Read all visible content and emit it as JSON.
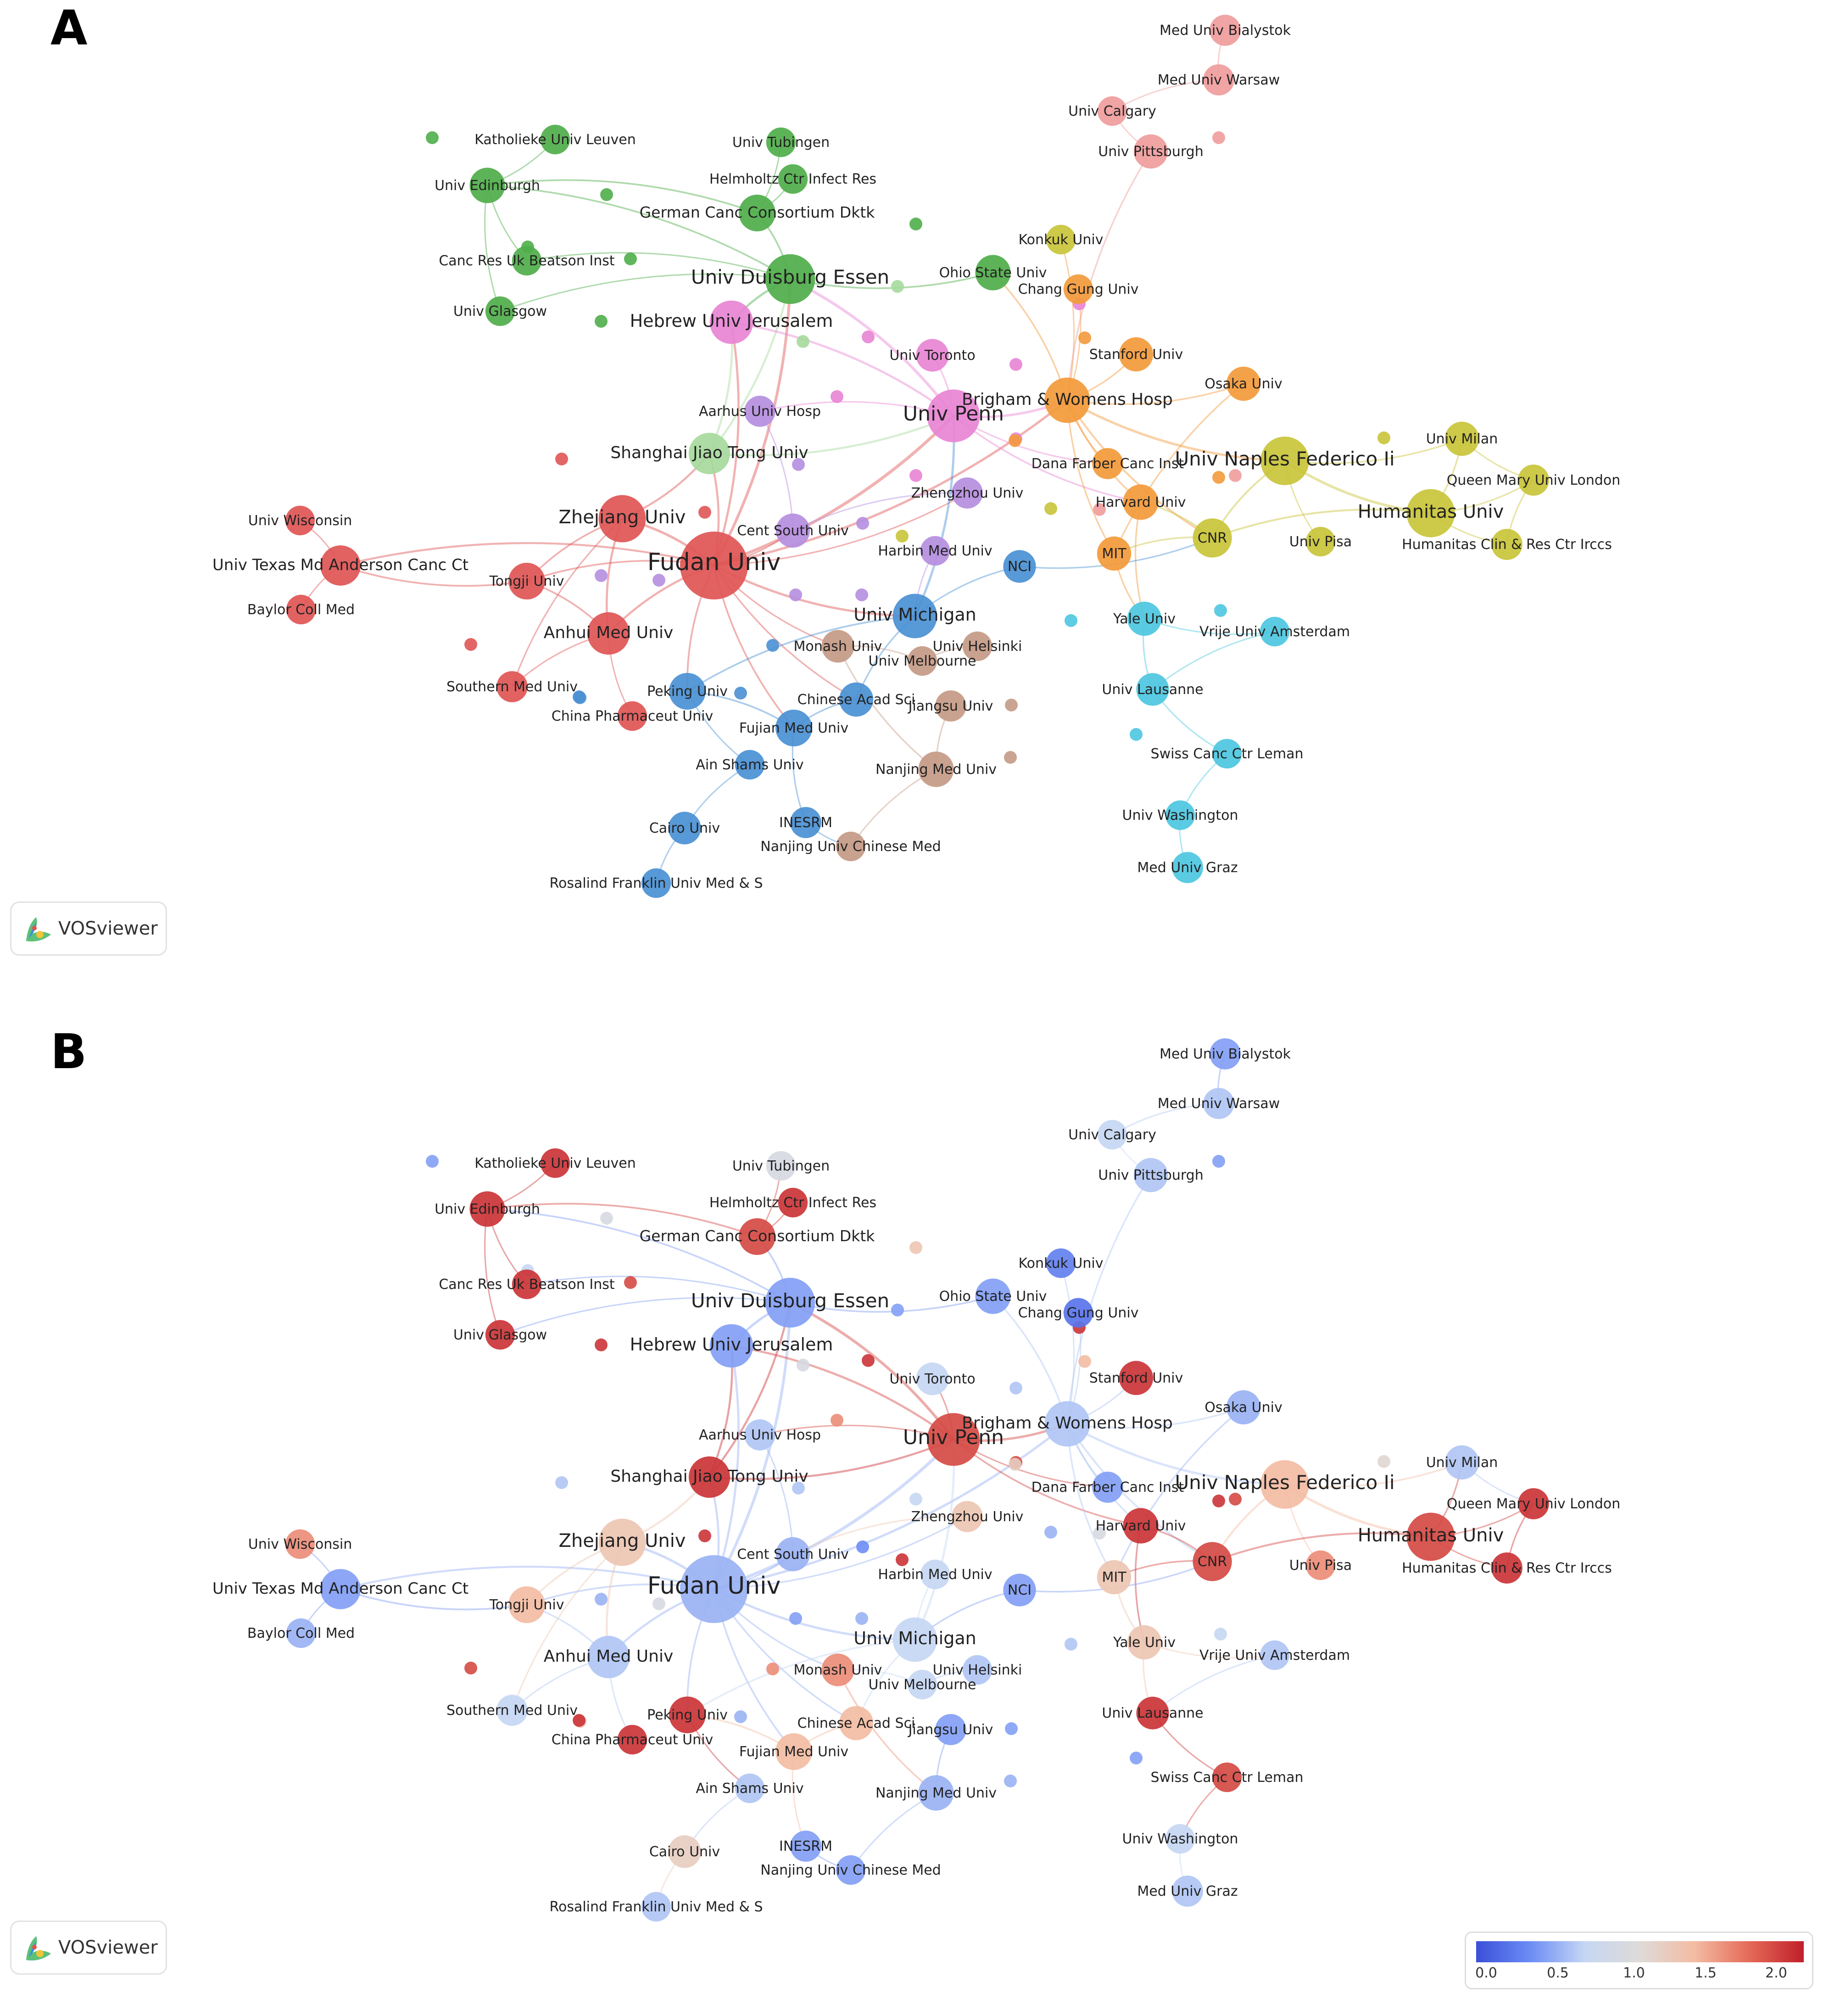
{
  "panels": [
    {
      "letter": "A",
      "logo_text": "VOSviewer"
    },
    {
      "letter": "B",
      "logo_text": "VOSviewer",
      "scale": {
        "ticks": [
          "0.0",
          "0.5",
          "1.0",
          "1.5",
          "2.0"
        ]
      }
    }
  ],
  "nodes": [
    {
      "label": "Fudan Univ",
      "cluster": "red",
      "weight": 100,
      "score": 0.7
    },
    {
      "label": "Univ Penn",
      "cluster": "pink",
      "weight": 55,
      "score": 1.9
    },
    {
      "label": "Univ Duisburg Essen",
      "cluster": "green",
      "weight": 48,
      "score": 0.6
    },
    {
      "label": "Univ Naples Federico Ii",
      "cluster": "yellow",
      "weight": 45,
      "score": 1.4
    },
    {
      "label": "Humanitas Univ",
      "cluster": "yellow",
      "weight": 44,
      "score": 1.9
    },
    {
      "label": "Zhejiang Univ",
      "cluster": "red",
      "weight": 42,
      "score": 1.3
    },
    {
      "label": "Brigham & Womens Hosp",
      "cluster": "orange",
      "weight": 38,
      "score": 0.8
    },
    {
      "label": "Univ Michigan",
      "cluster": "blue",
      "weight": 36,
      "score": 0.9
    },
    {
      "label": "Hebrew Univ Jerusalem",
      "cluster": "pink",
      "weight": 34,
      "score": 0.6
    },
    {
      "label": "Anhui Med Univ",
      "cluster": "red",
      "weight": 32,
      "score": 0.8
    },
    {
      "label": "Shanghai Jiao Tong Univ",
      "cluster": "lightgreen",
      "weight": 30,
      "score": 2.0
    },
    {
      "label": "German Canc Consortium Dktk",
      "cluster": "green",
      "weight": 22,
      "score": 1.9
    },
    {
      "label": "Univ Texas Md Anderson Canc Ct",
      "cluster": "red",
      "weight": 28,
      "score": 0.6
    },
    {
      "label": "CNR",
      "cluster": "yellow",
      "weight": 26,
      "score": 1.9
    },
    {
      "label": "Tongji Univ",
      "cluster": "red",
      "weight": 22,
      "score": 1.4
    },
    {
      "label": "Univ Edinburgh",
      "cluster": "green",
      "weight": 20,
      "score": 2.0
    },
    {
      "label": "Ohio State Univ",
      "cluster": "green",
      "weight": 20,
      "score": 0.6
    },
    {
      "label": "Univ Toronto",
      "cluster": "pink",
      "weight": 16,
      "score": 0.9
    },
    {
      "label": "Stanford Univ",
      "cluster": "orange",
      "weight": 18,
      "score": 2.0
    },
    {
      "label": "Osaka Univ",
      "cluster": "orange",
      "weight": 18,
      "score": 0.7
    },
    {
      "label": "Harvard Univ",
      "cluster": "orange",
      "weight": 20,
      "score": 2.0
    },
    {
      "label": "MIT",
      "cluster": "orange",
      "weight": 18,
      "score": 1.3
    },
    {
      "label": "Univ Milan",
      "cluster": "yellow",
      "weight": 18,
      "score": 0.8
    },
    {
      "label": "Queen Mary Univ London",
      "cluster": "yellow",
      "weight": 14,
      "score": 2.0
    },
    {
      "label": "Humanitas Clin & Res Ctr Irccs",
      "cluster": "yellow",
      "weight": 14,
      "score": 2.0
    },
    {
      "label": "Univ Pisa",
      "cluster": "yellow",
      "weight": 12,
      "score": 1.6
    },
    {
      "label": "Dana Farber Canc Inst",
      "cluster": "orange",
      "weight": 14,
      "score": 0.6
    },
    {
      "label": "Zhengzhou Univ",
      "cluster": "purple",
      "weight": 14,
      "score": 1.3
    },
    {
      "label": "Cent South Univ",
      "cluster": "purple",
      "weight": 18,
      "score": 0.7
    },
    {
      "label": "Aarhus Univ Hosp",
      "cluster": "purple",
      "weight": 14,
      "score": 0.8
    },
    {
      "label": "Harbin Med Univ",
      "cluster": "purple",
      "weight": 12,
      "score": 0.9
    },
    {
      "label": "NCI",
      "cluster": "blue",
      "weight": 16,
      "score": 0.6
    },
    {
      "label": "Yale Univ",
      "cluster": "cyan",
      "weight": 18,
      "score": 1.3
    },
    {
      "label": "Vrije Univ Amsterdam",
      "cluster": "cyan",
      "weight": 12,
      "score": 0.8
    },
    {
      "label": "Univ Lausanne",
      "cluster": "cyan",
      "weight": 16,
      "score": 2.0
    },
    {
      "label": "Swiss Canc Ctr Leman",
      "cluster": "cyan",
      "weight": 12,
      "score": 1.9
    },
    {
      "label": "Univ Washington",
      "cluster": "cyan",
      "weight": 12,
      "score": 0.9
    },
    {
      "label": "Med Univ Graz",
      "cluster": "cyan",
      "weight": 14,
      "score": 0.8
    },
    {
      "label": "Univ Helsinki",
      "cluster": "brown",
      "weight": 12,
      "score": 0.8
    },
    {
      "label": "Univ Melbourne",
      "cluster": "brown",
      "weight": 12,
      "score": 0.9
    },
    {
      "label": "Monash Univ",
      "cluster": "brown",
      "weight": 16,
      "score": 1.6
    },
    {
      "label": "Chinese Acad Sci",
      "cluster": "blue",
      "weight": 18,
      "score": 1.4
    },
    {
      "label": "Jiangsu Univ",
      "cluster": "brown",
      "weight": 14,
      "score": 0.6
    },
    {
      "label": "Nanjing Med Univ",
      "cluster": "brown",
      "weight": 20,
      "score": 0.7
    },
    {
      "label": "Fujian Med Univ",
      "cluster": "blue",
      "weight": 22,
      "score": 1.4
    },
    {
      "label": "Peking Univ",
      "cluster": "blue",
      "weight": 22,
      "score": 2.0
    },
    {
      "label": "China Pharmaceut Univ",
      "cluster": "red",
      "weight": 12,
      "score": 2.0
    },
    {
      "label": "Southern Med Univ",
      "cluster": "red",
      "weight": 14,
      "score": 0.9
    },
    {
      "label": "Ain Shams Univ",
      "cluster": "blue",
      "weight": 12,
      "score": 0.8
    },
    {
      "label": "Cairo Univ",
      "cluster": "blue",
      "weight": 16,
      "score": 1.2
    },
    {
      "label": "INESRM",
      "cluster": "blue",
      "weight": 14,
      "score": 0.6
    },
    {
      "label": "Nanjing Univ Chinese Med",
      "cluster": "brown",
      "weight": 12,
      "score": 0.6
    },
    {
      "label": "Rosalind Franklin Univ Med & S",
      "cluster": "blue",
      "weight": 12,
      "score": 0.8
    },
    {
      "label": "Univ Wisconsin",
      "cluster": "red",
      "weight": 12,
      "score": 1.6
    },
    {
      "label": "Baylor Coll Med",
      "cluster": "red",
      "weight": 12,
      "score": 0.7
    },
    {
      "label": "Katholieke Univ Leuven",
      "cluster": "green",
      "weight": 12,
      "score": 2.0
    },
    {
      "label": "Canc Res Uk Beatson Inst",
      "cluster": "green",
      "weight": 12,
      "score": 2.0
    },
    {
      "label": "Univ Glasgow",
      "cluster": "green",
      "weight": 12,
      "score": 2.0
    },
    {
      "label": "Univ Tubingen",
      "cluster": "green",
      "weight": 12,
      "score": 1.0
    },
    {
      "label": "Helmholtz Ctr Infect Res",
      "cluster": "green",
      "weight": 12,
      "score": 2.0
    },
    {
      "label": "Konkuk Univ",
      "cluster": "yellow",
      "weight": 12,
      "score": 0.4
    },
    {
      "label": "Chang Gung Univ",
      "cluster": "orange",
      "weight": 12,
      "score": 0.3
    },
    {
      "label": "Med Univ Bialystok",
      "cluster": "salmon",
      "weight": 14,
      "score": 0.6
    },
    {
      "label": "Med Univ Warsaw",
      "cluster": "salmon",
      "weight": 14,
      "score": 0.8
    },
    {
      "label": "Univ Calgary",
      "cluster": "salmon",
      "weight": 12,
      "score": 0.9
    },
    {
      "label": "Univ Pittsburgh",
      "cluster": "salmon",
      "weight": 18,
      "score": 0.8
    }
  ],
  "unlabeled_nodes": [
    {
      "cluster": "green",
      "score": 0.6
    },
    {
      "cluster": "green",
      "score": 1.0
    },
    {
      "cluster": "green",
      "score": 1.9
    },
    {
      "cluster": "green",
      "score": 0.9
    },
    {
      "cluster": "green",
      "score": 2.0
    },
    {
      "cluster": "green",
      "score": 1.3
    },
    {
      "cluster": "lightgreen",
      "score": 0.6
    },
    {
      "cluster": "lightgreen",
      "score": 1.0
    },
    {
      "cluster": "pink",
      "score": 2.0
    },
    {
      "cluster": "pink",
      "score": 1.6
    },
    {
      "cluster": "pink",
      "score": 0.8
    },
    {
      "cluster": "pink",
      "score": 1.9
    },
    {
      "cluster": "pink",
      "score": 0.9
    },
    {
      "cluster": "pink",
      "score": 2.0
    },
    {
      "cluster": "orange",
      "score": 1.4
    },
    {
      "cluster": "orange",
      "score": 1.2
    },
    {
      "cluster": "orange",
      "score": 2.0
    },
    {
      "cluster": "salmon",
      "score": 0.6
    },
    {
      "cluster": "salmon",
      "score": 1.9
    },
    {
      "cluster": "salmon",
      "score": 1.0
    },
    {
      "cluster": "yellow",
      "score": 1.1
    },
    {
      "cluster": "yellow",
      "score": 0.7
    },
    {
      "cluster": "yellow",
      "score": 2.0
    },
    {
      "cluster": "purple",
      "score": 0.8
    },
    {
      "cluster": "purple",
      "score": 0.7
    },
    {
      "cluster": "purple",
      "score": 1.0
    },
    {
      "cluster": "purple",
      "score": 0.5
    },
    {
      "cluster": "purple",
      "score": 0.6
    },
    {
      "cluster": "purple",
      "score": 0.7
    },
    {
      "cluster": "red",
      "score": 2.0
    },
    {
      "cluster": "red",
      "score": 0.8
    },
    {
      "cluster": "red",
      "score": 1.9
    },
    {
      "cluster": "blue",
      "score": 1.4
    },
    {
      "cluster": "blue",
      "score": 0.7
    },
    {
      "cluster": "blue",
      "score": 1.6
    },
    {
      "cluster": "blue",
      "score": 2.0
    },
    {
      "cluster": "cyan",
      "score": 0.8
    },
    {
      "cluster": "cyan",
      "score": 0.9
    },
    {
      "cluster": "cyan",
      "score": 0.6
    },
    {
      "cluster": "brown",
      "score": 0.6
    },
    {
      "cluster": "brown",
      "score": 0.7
    }
  ],
  "colors": {
    "red": "#e05555",
    "green": "#4fae4a",
    "lightgreen": "#a6d99c",
    "pink": "#e884d4",
    "purple": "#b58ee0",
    "blue": "#4a90d4",
    "orange": "#f39a3b",
    "yellow": "#c9c43a",
    "cyan": "#4cc7e0",
    "brown": "#c49a86",
    "salmon": "#ef9c9c"
  }
}
